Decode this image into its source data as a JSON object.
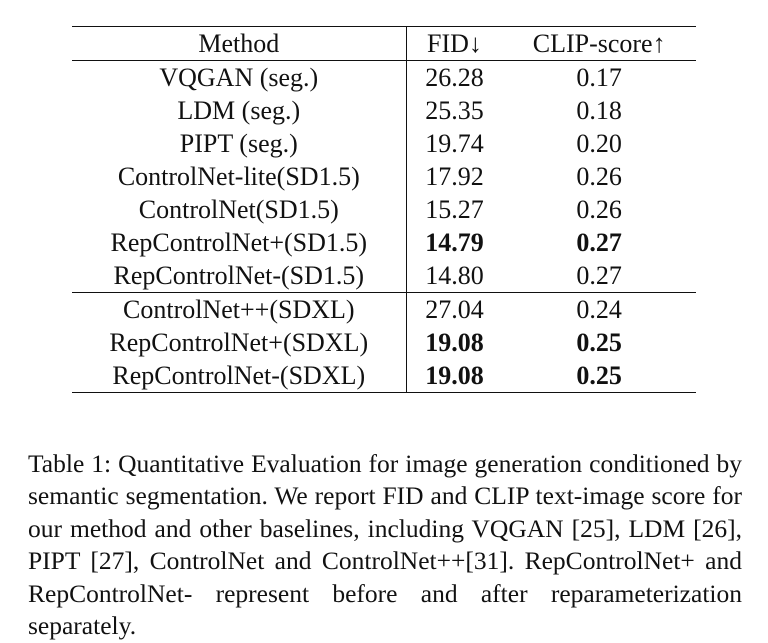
{
  "table": {
    "headers": {
      "method": "Method",
      "fid": "FID↓",
      "clip": "CLIP-score↑"
    },
    "rows": [
      {
        "method": "VQGAN (seg.)",
        "fid": "26.28",
        "clip": "0.17",
        "fid_bold": false,
        "clip_bold": false
      },
      {
        "method": "LDM (seg.)",
        "fid": "25.35",
        "clip": "0.18",
        "fid_bold": false,
        "clip_bold": false
      },
      {
        "method": "PIPT (seg.)",
        "fid": "19.74",
        "clip": "0.20",
        "fid_bold": false,
        "clip_bold": false
      },
      {
        "method": "ControlNet-lite(SD1.5)",
        "fid": "17.92",
        "clip": "0.26",
        "fid_bold": false,
        "clip_bold": false
      },
      {
        "method": "ControlNet(SD1.5)",
        "fid": "15.27",
        "clip": "0.26",
        "fid_bold": false,
        "clip_bold": false
      },
      {
        "method": "RepControlNet+(SD1.5)",
        "fid": "14.79",
        "clip": "0.27",
        "fid_bold": true,
        "clip_bold": true
      },
      {
        "method": "RepControlNet-(SD1.5)",
        "fid": "14.80",
        "clip": "0.27",
        "fid_bold": false,
        "clip_bold": false
      },
      {
        "method": "ControlNet++(SDXL)",
        "fid": "27.04",
        "clip": "0.24",
        "fid_bold": false,
        "clip_bold": false,
        "group_start": true
      },
      {
        "method": "RepControlNet+(SDXL)",
        "fid": "19.08",
        "clip": "0.25",
        "fid_bold": true,
        "clip_bold": true
      },
      {
        "method": "RepControlNet-(SDXL)",
        "fid": "19.08",
        "clip": "0.25",
        "fid_bold": true,
        "clip_bold": true
      }
    ]
  },
  "caption": {
    "label": "Table 1:",
    "text": "Quantitative Evaluation for image generation con­ditioned by semantic segmentation. We report FID and CLIP text-image score for our method and other baselines, includ­ing VQGAN [25], LDM [26], PIPT [27], ControlNet and ControlNet++[31]. RepControlNet+ and RepControlNet- represent before and after reparameterization separately."
  }
}
